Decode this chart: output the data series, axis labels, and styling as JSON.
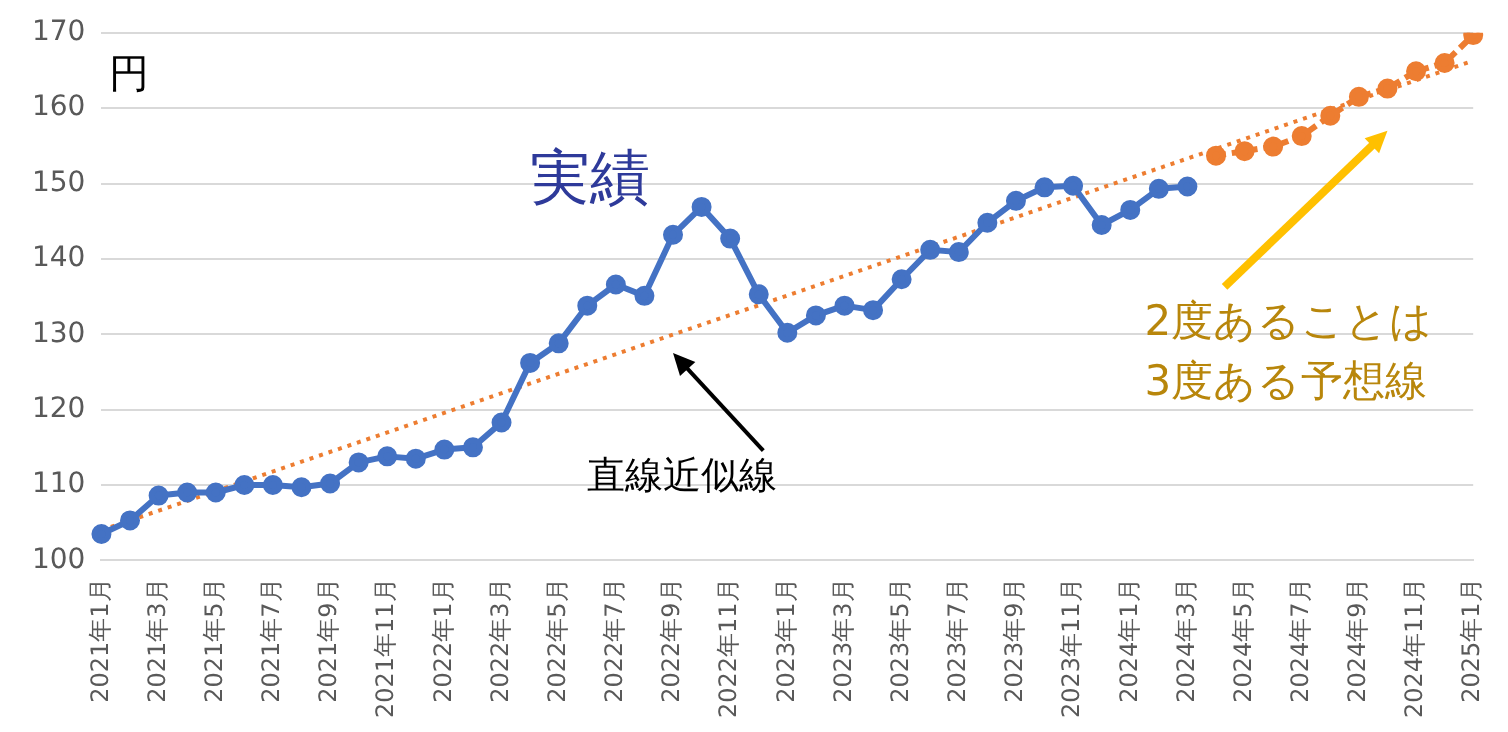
{
  "chart_data": {
    "type": "line",
    "ylabel": "円",
    "categories": [
      "2021年1月",
      null,
      "2021年3月",
      null,
      "2021年5月",
      null,
      "2021年7月",
      null,
      "2021年9月",
      null,
      "2021年11月",
      null,
      "2022年1月",
      null,
      "2022年3月",
      null,
      "2022年5月",
      null,
      "2022年7月",
      null,
      "2022年9月",
      null,
      "2022年11月",
      null,
      "2023年1月",
      null,
      "2023年3月",
      null,
      "2023年5月",
      null,
      "2023年7月",
      null,
      "2023年9月",
      null,
      "2023年11月",
      null,
      "2024年1月",
      null,
      "2024年3月",
      null,
      "2024年5月",
      null,
      "2024年7月",
      null,
      "2024年9月",
      null,
      "2024年11月",
      null,
      "2025年1月"
    ],
    "series": [
      {
        "name": "実績",
        "color": "#4472c4",
        "marker": "circle",
        "line_style": "solid",
        "values": [
          103.5,
          105.3,
          108.6,
          109,
          109,
          110,
          110,
          109.7,
          110.2,
          113,
          113.8,
          113.5,
          114.7,
          115,
          118.3,
          126.2,
          128.8,
          133.8,
          136.6,
          135.1,
          143.2,
          146.9,
          142.7,
          135.3,
          130.2,
          132.5,
          133.8,
          133.2,
          137.3,
          141.2,
          140.9,
          144.8,
          147.7,
          149.5,
          149.7,
          144.5,
          146.5,
          149.3,
          149.6,
          null,
          null,
          null,
          null,
          null,
          null,
          null,
          null,
          null,
          null
        ]
      },
      {
        "name": "2度あることは3度ある予想線",
        "color": "#ed7d31",
        "marker": "circle",
        "line_style": "dashed",
        "values": [
          null,
          null,
          null,
          null,
          null,
          null,
          null,
          null,
          null,
          null,
          null,
          null,
          null,
          null,
          null,
          null,
          null,
          null,
          null,
          null,
          null,
          null,
          null,
          null,
          null,
          null,
          null,
          null,
          null,
          null,
          null,
          null,
          null,
          null,
          null,
          null,
          null,
          null,
          null,
          153.7,
          154.3,
          154.9,
          156.3,
          159,
          161.5,
          162.6,
          164.9,
          166,
          169.7
        ]
      },
      {
        "name": "直線近似線",
        "color": "#ed7d31",
        "marker": "none",
        "line_style": "dotted",
        "values": [
          104,
          null,
          null,
          null,
          null,
          null,
          null,
          null,
          null,
          null,
          null,
          null,
          null,
          null,
          null,
          null,
          null,
          null,
          null,
          null,
          null,
          null,
          null,
          null,
          null,
          null,
          null,
          null,
          null,
          null,
          null,
          null,
          null,
          null,
          null,
          null,
          null,
          null,
          null,
          null,
          null,
          null,
          null,
          null,
          null,
          null,
          null,
          null,
          166.3
        ]
      }
    ],
    "ylim": [
      100,
      170
    ],
    "yticks": [
      100,
      110,
      120,
      130,
      140,
      150,
      160,
      170
    ],
    "grid": "y",
    "legend": false
  }
}
